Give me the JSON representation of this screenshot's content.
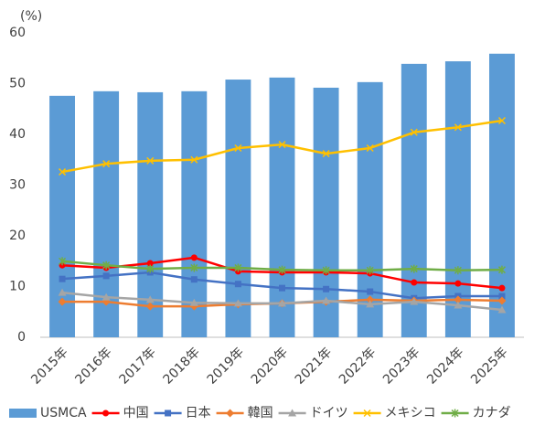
{
  "chart_data": {
    "type": "bar",
    "y_label": "(%)",
    "categories": [
      "2015年",
      "2016年",
      "2017年",
      "2018年",
      "2019年",
      "2020年",
      "2021年",
      "2022年",
      "2023年",
      "2024年",
      "2025年"
    ],
    "ylim": [
      0,
      60
    ],
    "yticks": [
      0,
      10,
      20,
      30,
      40,
      50,
      60
    ],
    "grid": false,
    "series": [
      {
        "name": "USMCA",
        "type": "bar",
        "color": "#5b9bd5",
        "values": [
          47.6,
          48.5,
          48.3,
          48.5,
          50.8,
          51.2,
          49.2,
          50.3,
          53.9,
          54.4,
          55.9
        ]
      },
      {
        "name": "中国",
        "type": "line",
        "marker": "circle",
        "color": "#ff0000",
        "values": [
          14.2,
          13.7,
          14.6,
          15.7,
          13.0,
          12.8,
          12.8,
          12.6,
          10.8,
          10.6,
          9.7
        ]
      },
      {
        "name": "日本",
        "type": "line",
        "marker": "square",
        "color": "#4472c4",
        "values": [
          11.5,
          12.1,
          12.8,
          11.4,
          10.5,
          9.7,
          9.5,
          9.0,
          7.7,
          8.1,
          8.1
        ]
      },
      {
        "name": "韓国",
        "type": "line",
        "marker": "diamond",
        "color": "#ed7d31",
        "values": [
          7.0,
          7.0,
          6.1,
          6.1,
          6.5,
          6.7,
          7.0,
          7.4,
          7.2,
          7.4,
          7.2
        ]
      },
      {
        "name": "ドイツ",
        "type": "line",
        "marker": "triangle",
        "color": "#a5a5a5",
        "values": [
          8.8,
          7.9,
          7.4,
          6.8,
          6.7,
          6.7,
          7.2,
          6.5,
          7.0,
          6.3,
          5.4
        ]
      },
      {
        "name": "メキシコ",
        "type": "line",
        "marker": "x",
        "color": "#ffc000",
        "values": [
          32.6,
          34.2,
          34.8,
          35.0,
          37.3,
          38.0,
          36.2,
          37.3,
          40.4,
          41.4,
          42.7
        ]
      },
      {
        "name": "カナダ",
        "type": "line",
        "marker": "star",
        "color": "#70ad47",
        "values": [
          15.0,
          14.2,
          13.5,
          13.7,
          13.7,
          13.3,
          13.2,
          13.2,
          13.5,
          13.2,
          13.3
        ]
      }
    ]
  }
}
